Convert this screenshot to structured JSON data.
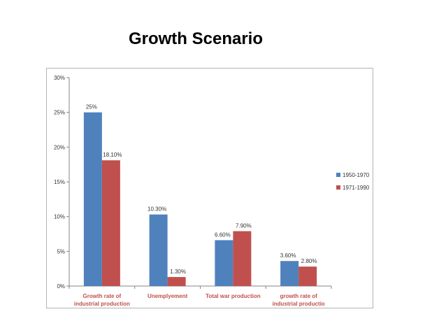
{
  "slide": {
    "title": "Growth Scenario"
  },
  "chart_data": {
    "type": "bar",
    "title": "",
    "xlabel": "",
    "ylabel": "",
    "ylim": [
      0,
      30
    ],
    "yticks": [
      "0%",
      "5%",
      "10%",
      "15%",
      "20%",
      "25%",
      "30%"
    ],
    "categories": [
      [
        "Growth rate of",
        "industrial production"
      ],
      [
        "Unemplyement"
      ],
      [
        "Total war production"
      ],
      [
        "growth rate of",
        "industrial productio"
      ]
    ],
    "series": [
      {
        "name": "1950-1970",
        "color": "#4f81bd",
        "values": [
          25,
          10.3,
          6.6,
          3.6
        ],
        "labels": [
          "25%",
          "10.30%",
          "6.60%",
          "3.60%"
        ]
      },
      {
        "name": "1971-1990",
        "color": "#c0504d",
        "values": [
          18.1,
          1.3,
          7.9,
          2.8
        ],
        "labels": [
          "18.10%",
          "1.30%",
          "7.90%",
          "2.80%"
        ]
      }
    ],
    "legend_position": "right",
    "grid": false
  }
}
